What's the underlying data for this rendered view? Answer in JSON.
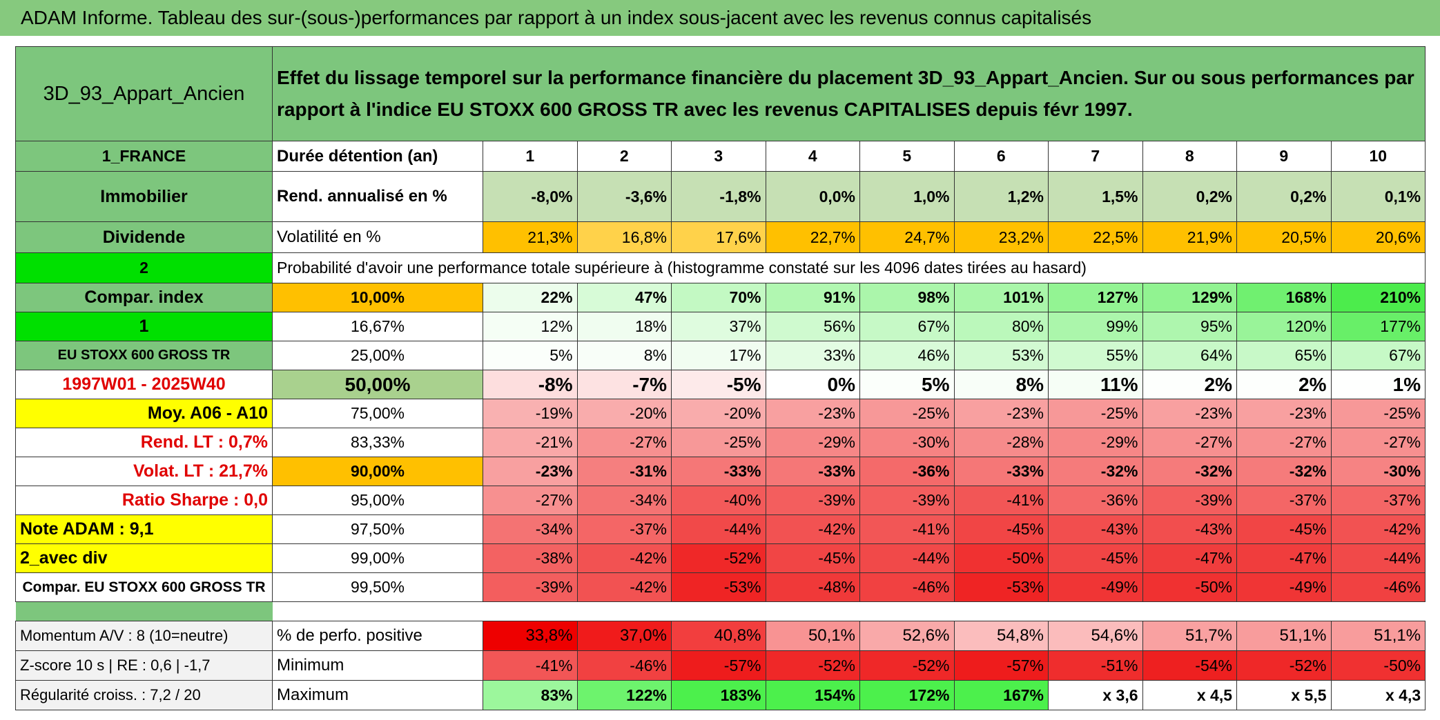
{
  "title": "ADAM Informe. Tableau des sur-(sous-)performances par rapport à un index sous-jacent avec les revenus connus capitalisés",
  "header": {
    "label": "3D_93_Appart_Ancien",
    "description": "Effet du lissage temporel sur la performance financière du placement 3D_93_Appart_Ancien. Sur ou sous performances par rapport à l'indice EU STOXX 600 GROSS TR avec les revenus CAPITALISES depuis févr 1997."
  },
  "rows": [
    [
      "1_FRANCE",
      "Durée détention (an)",
      "1",
      "2",
      "3",
      "4",
      "5",
      "6",
      "7",
      "8",
      "9",
      "10"
    ],
    [
      "Immobilier",
      "Rend. annualisé en %",
      "-8,0%",
      "-3,6%",
      "-1,8%",
      "0,0%",
      "1,0%",
      "1,2%",
      "1,5%",
      "0,2%",
      "0,2%",
      "0,1%"
    ],
    [
      "Dividende",
      "Volatilité en %",
      "21,3%",
      "16,8%",
      "17,6%",
      "22,7%",
      "24,7%",
      "23,2%",
      "22,5%",
      "21,9%",
      "20,5%",
      "20,6%"
    ],
    [
      "2",
      "Probabilité d'avoir une performance totale supérieure à (histogramme constaté sur les 4096 dates tirées au hasard)"
    ],
    [
      "Compar. index",
      "10,00%",
      "22%",
      "47%",
      "70%",
      "91%",
      "98%",
      "101%",
      "127%",
      "129%",
      "168%",
      "210%"
    ],
    [
      "1",
      "16,67%",
      "12%",
      "18%",
      "37%",
      "56%",
      "67%",
      "80%",
      "99%",
      "95%",
      "120%",
      "177%"
    ],
    [
      "EU STOXX 600 GROSS TR",
      "25,00%",
      "5%",
      "8%",
      "17%",
      "33%",
      "46%",
      "53%",
      "55%",
      "64%",
      "65%",
      "67%"
    ],
    [
      "1997W01 - 2025W40",
      "50,00%",
      "-8%",
      "-7%",
      "-5%",
      "0%",
      "5%",
      "8%",
      "11%",
      "2%",
      "2%",
      "1%"
    ],
    [
      "Moy. A06 - A10",
      "75,00%",
      "-19%",
      "-20%",
      "-20%",
      "-23%",
      "-25%",
      "-23%",
      "-25%",
      "-23%",
      "-23%",
      "-25%"
    ],
    [
      "Rend. LT :   0,7%",
      "83,33%",
      "-21%",
      "-27%",
      "-25%",
      "-29%",
      "-30%",
      "-28%",
      "-29%",
      "-27%",
      "-27%",
      "-27%"
    ],
    [
      "Volat. LT :   21,7%",
      "90,00%",
      "-23%",
      "-31%",
      "-33%",
      "-33%",
      "-36%",
      "-33%",
      "-32%",
      "-32%",
      "-32%",
      "-30%"
    ],
    [
      "Ratio Sharpe :    0,0",
      "95,00%",
      "-27%",
      "-34%",
      "-40%",
      "-39%",
      "-39%",
      "-41%",
      "-36%",
      "-39%",
      "-37%",
      "-37%"
    ],
    [
      "Note ADAM : 9,1",
      "97,50%",
      "-34%",
      "-37%",
      "-44%",
      "-42%",
      "-41%",
      "-45%",
      "-43%",
      "-43%",
      "-45%",
      "-42%"
    ],
    [
      "2_avec div",
      "99,00%",
      "-38%",
      "-42%",
      "-52%",
      "-45%",
      "-44%",
      "-50%",
      "-45%",
      "-47%",
      "-47%",
      "-44%"
    ],
    [
      "Compar. EU STOXX 600 GROSS TR",
      "99,50%",
      "-39%",
      "-42%",
      "-53%",
      "-48%",
      "-46%",
      "-53%",
      "-49%",
      "-50%",
      "-49%",
      "-46%"
    ]
  ],
  "footer": [
    [
      "Momentum A/V : 8 (10=neutre)",
      "% de perfo. positive",
      "33,8%",
      "37,0%",
      "40,8%",
      "50,1%",
      "52,6%",
      "54,8%",
      "54,6%",
      "51,7%",
      "51,1%",
      "51,1%"
    ],
    [
      "Z-score 10 s | RE : 0,6 | -1,7",
      "Minimum",
      "-41%",
      "-46%",
      "-57%",
      "-52%",
      "-52%",
      "-57%",
      "-51%",
      "-54%",
      "-52%",
      "-50%"
    ],
    [
      "Régularité croiss. : 7,2 / 20",
      "Maximum",
      "83%",
      "122%",
      "183%",
      "154%",
      "172%",
      "167%",
      "x 3,6",
      "x 4,5",
      "x 5,5",
      "x 4,3"
    ]
  ]
}
